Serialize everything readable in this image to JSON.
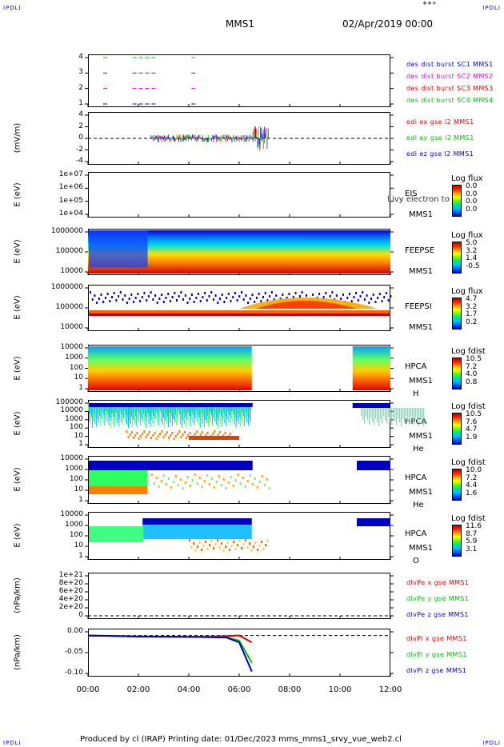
{
  "header": {
    "corner_tl": "IPDLI",
    "corner_tr": "IPDLI",
    "corner_bl": "IPDLI",
    "corner_br": "IPDLI",
    "mission": "MMS1",
    "date": "02/Apr/2019 00:00"
  },
  "footer": {
    "text": "Produced by cl (IRAP)   Printing date: 01/Dec/2023   mms_mms1_srvy_vue_web2.cl"
  },
  "x_ticks": [
    "00:00",
    "02:00",
    "04:00",
    "06:00",
    "08:00",
    "10:00",
    "12:00"
  ],
  "colors": {
    "red": "#e00000",
    "green": "#00c000",
    "blue": "#0000c0",
    "magenta": "#e000e0"
  },
  "panels": {
    "p1": {
      "ticks": [
        "4",
        "3",
        "2",
        "1"
      ],
      "legend": [
        "des dist burst SC1 MMS1",
        "des dist burst SC2 MMS2",
        "des dist burst SC3 MMS3",
        "des dist burst SC4 MMS4"
      ]
    },
    "p2": {
      "ylabel": "(mV/m)",
      "ticks": [
        "4",
        "2",
        "0",
        "-2",
        "-4"
      ],
      "legend": [
        "edi ex gse l2 MMS1",
        "edi ey gse l2 MMS1",
        "edi ez gse l2 MMS1"
      ]
    },
    "p3": {
      "ylabel": "E (eV)",
      "ticks": [
        "1e+07",
        "1e+06",
        "1e+05",
        "1e+04"
      ],
      "inst": "EIS",
      "sc": "MMS1",
      "overlay": "l ivy electron to",
      "cb_title": "Log flux",
      "cb_vals": [
        "0.0",
        "0.0",
        "0.0",
        "0.0"
      ]
    },
    "p4": {
      "ylabel": "E (eV)",
      "ticks": [
        "1000000",
        "100000",
        "10000"
      ],
      "inst": "FEEPSE",
      "sc": "MMS1",
      "cb_title": "Log flux",
      "cb_vals": [
        "5.0",
        "3.2",
        "1.4",
        "-0.5"
      ]
    },
    "p5": {
      "ylabel": "E (eV)",
      "ticks": [
        "1000000",
        "100000",
        "10000"
      ],
      "inst": "FEEPSI",
      "sc": "MMS1",
      "cb_title": "Log flux",
      "cb_vals": [
        "4.7",
        "3.2",
        "1.7",
        "0.2"
      ]
    },
    "p6": {
      "ylabel": "E (eV)",
      "ticks": [
        "10000",
        "1000",
        "100",
        "10",
        "1"
      ],
      "inst": "HPCA",
      "sc": "MMS1",
      "species": "H",
      "sup": "+",
      "cb_title": "Log fdist",
      "cb_vals": [
        "10.5",
        "7.2",
        "4.0",
        "0.8"
      ]
    },
    "p7": {
      "ylabel": "E (eV)",
      "ticks": [
        "100000",
        "10000",
        "1000",
        "100",
        "10",
        "1"
      ],
      "inst": "HPCA",
      "sc": "MMS1",
      "species": "He",
      "sup": "+",
      "cb_title": "Log fdist",
      "cb_vals": [
        "10.5",
        "7.6",
        "4.7",
        "1.9"
      ]
    },
    "p8": {
      "ylabel": "E (eV)",
      "ticks": [
        "10000",
        "1000",
        "100",
        "10",
        "1"
      ],
      "inst": "HPCA",
      "sc": "MMS1",
      "species": "He",
      "sup": "++",
      "cb_title": "Log fdist",
      "cb_vals": [
        "10.0",
        "7.2",
        "4.4",
        "1.6"
      ]
    },
    "p9": {
      "ylabel": "E (eV)",
      "ticks": [
        "10000",
        "1000",
        "100",
        "10",
        "1"
      ],
      "inst": "HPCA",
      "sc": "MMS1",
      "species": "O",
      "sup": "+",
      "cb_title": "Log fdist",
      "cb_vals": [
        "11.6",
        "8.7",
        "5.9",
        "3.1"
      ]
    },
    "p10": {
      "ylabel": "(nPa/km)",
      "ticks": [
        "1e+21",
        "8e+20",
        "6e+20",
        "4e+20",
        "2e+20",
        "0"
      ],
      "legend": [
        "dlvPe x gse MMS1",
        "dlvPe y gse MMS1",
        "dlvPe z gse MMS1"
      ]
    },
    "p11": {
      "ylabel": "(nPa/km)",
      "ticks": [
        "0.00",
        "-0.05",
        "-0.10"
      ],
      "legend": [
        "dlvPi x gse MMS1",
        "dlvPi y gse MMS1",
        "dlvPi z gse MMS1"
      ]
    }
  },
  "chart_data": [
    {
      "type": "scatter",
      "title": "MMS1 02/Apr/2019 00:00",
      "series": [
        {
          "name": "des dist burst SC1 MMS1",
          "color": "#0000c0",
          "value": 1,
          "x": [
            "00:40",
            "01:50",
            "02:05",
            "02:20",
            "02:35",
            "04:10"
          ]
        },
        {
          "name": "des dist burst SC2 MMS2",
          "color": "#e000e0",
          "value": 2,
          "x": [
            "00:40",
            "01:50",
            "02:05",
            "02:20",
            "02:35",
            "04:10"
          ]
        },
        {
          "name": "des dist burst SC3 MMS3",
          "color": "#e00000",
          "value": 3,
          "x": [
            "00:40",
            "01:50",
            "02:05",
            "02:20",
            "02:35",
            "04:10"
          ]
        },
        {
          "name": "des dist burst SC4 MMS4",
          "color": "#00c000",
          "value": 4,
          "x": [
            "00:40",
            "01:50",
            "02:05",
            "02:20",
            "02:35",
            "04:10"
          ]
        }
      ],
      "ylim": [
        0.6,
        4.6
      ]
    },
    {
      "type": "line",
      "ylabel": "(mV/m)",
      "ylim": [
        -4,
        4
      ],
      "series": [
        {
          "name": "edi ex gse l2 MMS1"
        },
        {
          "name": "edi ey gse l2 MMS1"
        },
        {
          "name": "edi ez gse l2 MMS1"
        }
      ],
      "x_range": [
        "02:30",
        "07:10"
      ]
    },
    {
      "type": "heatmap",
      "ylabel": "E (eV)",
      "ylim": [
        10000,
        10000000
      ],
      "log": true,
      "cb_range": [
        0.0,
        0.0
      ]
    },
    {
      "type": "heatmap",
      "ylabel": "E (eV)",
      "ylim": [
        10000,
        1000000
      ],
      "log": true,
      "cb_range": [
        -0.5,
        5.0
      ]
    },
    {
      "type": "heatmap",
      "ylabel": "E (eV)",
      "ylim": [
        10000,
        1000000
      ],
      "log": true,
      "cb_range": [
        0.2,
        4.7
      ]
    },
    {
      "type": "heatmap",
      "ylabel": "E (eV)",
      "ylim": [
        1,
        10000
      ],
      "log": true,
      "cb_range": [
        0.8,
        10.5
      ],
      "gap": [
        "06:30",
        "10:30"
      ]
    },
    {
      "type": "heatmap",
      "ylabel": "E (eV)",
      "ylim": [
        1,
        100000
      ],
      "log": true,
      "cb_range": [
        1.9,
        10.5
      ],
      "gap": [
        "06:30",
        "10:30"
      ]
    },
    {
      "type": "heatmap",
      "ylabel": "E (eV)",
      "ylim": [
        1,
        10000
      ],
      "log": true,
      "cb_range": [
        1.6,
        10.0
      ],
      "gap": [
        "06:30",
        "10:30"
      ]
    },
    {
      "type": "heatmap",
      "ylabel": "E (eV)",
      "ylim": [
        1,
        10000
      ],
      "log": true,
      "cb_range": [
        3.1,
        11.6
      ],
      "gap": [
        "06:30",
        "10:30"
      ]
    },
    {
      "type": "line",
      "ylabel": "(nPa/km)",
      "ylim": [
        0,
        1e+21
      ],
      "series": [
        {
          "name": "dlvPe x gse MMS1"
        },
        {
          "name": "dlvPe y gse MMS1"
        },
        {
          "name": "dlvPe z gse MMS1"
        }
      ]
    },
    {
      "type": "line",
      "ylabel": "(nPa/km)",
      "ylim": [
        -0.12,
        0.02
      ],
      "series": [
        {
          "name": "dlvPi x gse MMS1",
          "x": [
            "00:00",
            "02:00",
            "04:00",
            "05:30",
            "06:00",
            "06:30"
          ],
          "y": [
            0.0,
            -0.003,
            -0.004,
            -0.002,
            0.0,
            -0.02
          ]
        },
        {
          "name": "dlvPi y gse MMS1",
          "x": [
            "00:00",
            "02:00",
            "04:00",
            "05:30",
            "06:00",
            "06:30"
          ],
          "y": [
            0.0,
            -0.003,
            -0.004,
            -0.005,
            -0.015,
            -0.08
          ]
        },
        {
          "name": "dlvPi z gse MMS1",
          "x": [
            "00:00",
            "02:00",
            "04:00",
            "05:30",
            "06:00",
            "06:30"
          ],
          "y": [
            0.0,
            -0.003,
            -0.004,
            -0.006,
            -0.02,
            -0.105
          ]
        }
      ]
    }
  ]
}
